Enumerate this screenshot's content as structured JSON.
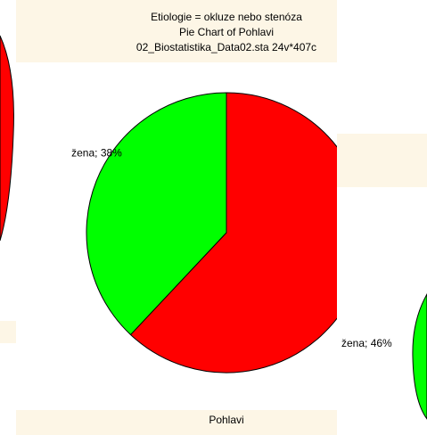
{
  "chart_data": {
    "type": "pie",
    "title": "Etiologie = okluze nebo stenóza",
    "subtitle": "Pie Chart of Pohlavi",
    "source": "02_Biostatistika_Data02.sta 24v*407c",
    "xlabel": "Pohlavi",
    "categories": [
      null,
      "žena"
    ],
    "values": [
      62,
      38
    ],
    "value_labels": [
      null,
      "žena; 38%"
    ],
    "colors": [
      "#ff0000",
      "#00ff00"
    ]
  },
  "background_window_label": "žena; 46%"
}
